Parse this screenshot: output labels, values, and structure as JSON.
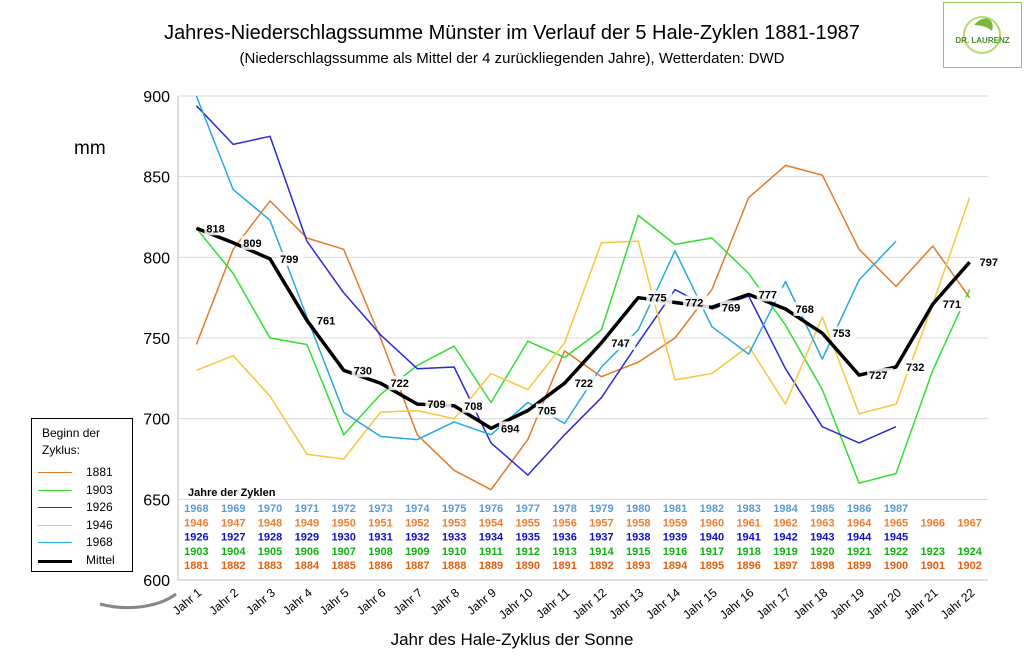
{
  "header": {
    "title": "Jahres-Niederschlagssumme  Münster im Verlauf der 5 Hale-Zyklen 1881-1987",
    "subtitle": "(Niederschlagssumme als Mittel der 4 zurückliegenden Jahre),  Wetterdaten: DWD",
    "unit": "mm",
    "xlabel": "Jahr des Hale-Zyklus der Sonne",
    "logo_text": "DR. LAURENZ"
  },
  "legend": {
    "title": "Beginn der Zyklus:",
    "items": [
      "1881",
      "1903",
      "1926",
      "1946",
      "1968",
      "Mittel"
    ]
  },
  "chart_data": {
    "type": "line",
    "title": "Jahres-Niederschlagssumme  Münster im Verlauf der 5 Hale-Zyklen 1881-1987",
    "subtitle": "(Niederschlagssumme als Mittel der 4 zurückliegenden Jahre),  Wetterdaten: DWD",
    "xlabel": "Jahr des Hale-Zyklus der Sonne",
    "ylabel": "mm",
    "ylim": [
      600,
      900
    ],
    "yticks": [
      600,
      650,
      700,
      750,
      800,
      850,
      900
    ],
    "grid": "horizontal",
    "legend_position": "bottom-left",
    "categories": [
      "Jahr 1",
      "Jahr 2",
      "Jahr 3",
      "Jahr 4",
      "Jahr 5",
      "Jahr 6",
      "Jahr 7",
      "Jahr 8",
      "Jahr 9",
      "Jahr 10",
      "Jahr 11",
      "Jahr 12",
      "Jahr 13",
      "Jahr 14",
      "Jahr 15",
      "Jahr 16",
      "Jahr 17",
      "Jahr 18",
      "Jahr 19",
      "Jahr 20",
      "Jahr 21",
      "Jahr 22"
    ],
    "series": [
      {
        "name": "1881",
        "color": "#e07b2a",
        "values": [
          746,
          805,
          835,
          812,
          805,
          750,
          690,
          668,
          656,
          687,
          742,
          726,
          735,
          750,
          780,
          837,
          857,
          851,
          805,
          782,
          807,
          775
        ]
      },
      {
        "name": "1903",
        "color": "#33dd33",
        "values": [
          818,
          790,
          750,
          746,
          690,
          715,
          733,
          745,
          710,
          748,
          738,
          755,
          826,
          808,
          812,
          790,
          758,
          718,
          660,
          666,
          730,
          780
        ]
      },
      {
        "name": "1926",
        "color": "#2b2bd4",
        "values": [
          894,
          870,
          875,
          810,
          778,
          752,
          731,
          732,
          685,
          665,
          690,
          713,
          747,
          780,
          768,
          776,
          731,
          695,
          685,
          695,
          null,
          null
        ]
      },
      {
        "name": "1946",
        "color": "#f8c53c",
        "values": [
          730,
          739,
          714,
          678,
          675,
          704,
          705,
          700,
          728,
          718,
          747,
          809,
          810,
          724,
          728,
          745,
          709,
          763,
          703,
          709,
          771,
          837
        ]
      },
      {
        "name": "1968",
        "color": "#27a9dd",
        "values": [
          900,
          842,
          823,
          763,
          704,
          689,
          687,
          698,
          690,
          710,
          697,
          732,
          755,
          804,
          757,
          740,
          785,
          737,
          786,
          810,
          null,
          null
        ]
      },
      {
        "name": "Mittel",
        "color": "#000000",
        "values": [
          818,
          809,
          799,
          761,
          730,
          722,
          709,
          708,
          694,
          705,
          722,
          747,
          775,
          772,
          769,
          777,
          768,
          753,
          727,
          732,
          771,
          797
        ]
      }
    ],
    "data_labels": [
      "818",
      "809",
      "799",
      "761",
      "730",
      "722",
      "709",
      "708",
      "694",
      "705",
      "722",
      "747",
      "775",
      "772",
      "769",
      "777",
      "768",
      "753",
      "727",
      "732",
      "771",
      "797"
    ],
    "year_table": {
      "heading": "Jahre der Zyklen",
      "rows": [
        {
          "color": "#5b9bd5",
          "bold": true,
          "values": [
            "1968",
            "1969",
            "1970",
            "1971",
            "1972",
            "1973",
            "1974",
            "1975",
            "1976",
            "1977",
            "1978",
            "1979",
            "1980",
            "1981",
            "1982",
            "1983",
            "1984",
            "1985",
            "1986",
            "1987",
            "",
            ""
          ]
        },
        {
          "color": "#ed7d31",
          "bold": true,
          "values": [
            "1946",
            "1947",
            "1948",
            "1949",
            "1950",
            "1951",
            "1952",
            "1953",
            "1954",
            "1955",
            "1956",
            "1957",
            "1958",
            "1959",
            "1960",
            "1961",
            "1962",
            "1963",
            "1964",
            "1965",
            "1966",
            "1967"
          ]
        },
        {
          "color": "#1010c8",
          "bold": true,
          "values": [
            "1926",
            "1927",
            "1928",
            "1929",
            "1930",
            "1931",
            "1932",
            "1933",
            "1934",
            "1935",
            "1936",
            "1937",
            "1938",
            "1939",
            "1940",
            "1941",
            "1942",
            "1943",
            "1944",
            "1945",
            "",
            ""
          ]
        },
        {
          "color": "#10b010",
          "bold": true,
          "values": [
            "1903",
            "1904",
            "1905",
            "1906",
            "1907",
            "1908",
            "1909",
            "1910",
            "1911",
            "1912",
            "1913",
            "1914",
            "1915",
            "1916",
            "1917",
            "1918",
            "1919",
            "1920",
            "1921",
            "1922",
            "1923",
            "1924"
          ]
        },
        {
          "color": "#e06010",
          "bold": true,
          "values": [
            "1881",
            "1882",
            "1883",
            "1884",
            "1885",
            "1886",
            "1887",
            "1888",
            "1889",
            "1890",
            "1891",
            "1892",
            "1893",
            "1894",
            "1895",
            "1896",
            "1897",
            "1898",
            "1899",
            "1900",
            "1901",
            "1902"
          ]
        }
      ]
    }
  }
}
